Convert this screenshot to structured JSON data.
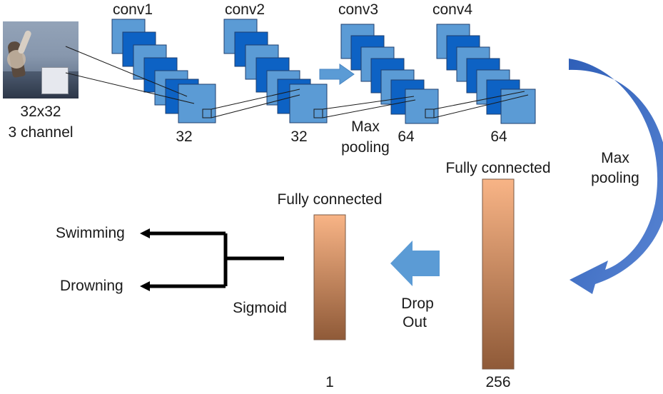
{
  "input": {
    "size_label": "32x32",
    "channel_label": "3 channel"
  },
  "conv_layers": [
    {
      "name": "conv1",
      "filters": "32"
    },
    {
      "name": "conv2",
      "filters": "32"
    },
    {
      "name": "conv3",
      "filters": "64"
    },
    {
      "name": "conv4",
      "filters": "64"
    }
  ],
  "max_pooling_1": [
    "Max",
    "pooling"
  ],
  "max_pooling_2": [
    "Max",
    "pooling"
  ],
  "fc1": {
    "label": "Fully connected",
    "units": "256"
  },
  "fc2": {
    "label": "Fully connected",
    "units": "1"
  },
  "dropout": [
    "Drop",
    "Out"
  ],
  "activation": "Sigmoid",
  "outputs": [
    "Swimming",
    "Drowning"
  ],
  "colors": {
    "conv_dark": "#0d62c4",
    "conv_mid": "#3a86d8",
    "conv_light": "#5b9bd5",
    "arrow_blue": "#5b9bd5",
    "curve_blue": "#3f6fc4",
    "fc_top": "#f8b486",
    "fc_bottom": "#8f5a38",
    "line": "#000000"
  }
}
